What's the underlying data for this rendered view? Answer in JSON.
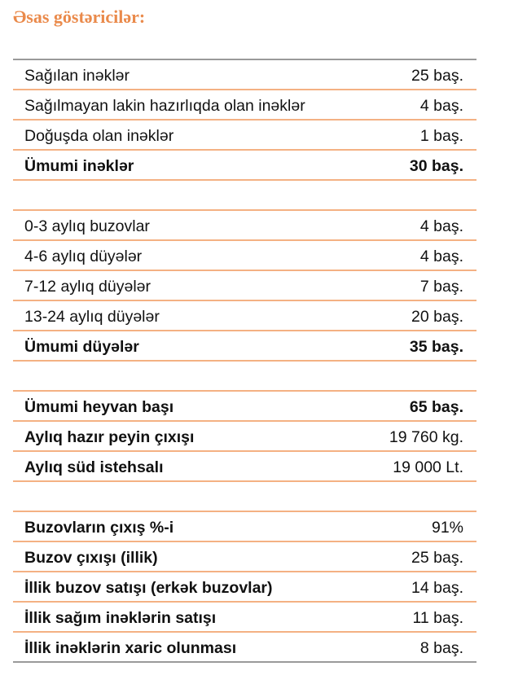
{
  "title": "Əsas göstəricilər:",
  "rows": [
    {
      "label": "Sağılan inəklər",
      "value": "25 baş.",
      "bold": false
    },
    {
      "label": "Sağılmayan lakin hazırlıqda olan inəklər",
      "value": "4 baş.",
      "bold": false
    },
    {
      "label": "Doğuşda olan inəklər",
      "value": "1 baş.",
      "bold": false
    },
    {
      "label": "Ümumi inəklər",
      "value": "30 baş.",
      "bold": true
    },
    {
      "label": "",
      "value": "",
      "bold": false
    },
    {
      "label": "0-3 aylıq buzovlar",
      "value": "4 baş.",
      "bold": false
    },
    {
      "label": "4-6 aylıq düyələr",
      "value": "4 baş.",
      "bold": false
    },
    {
      "label": "7-12 aylıq düyələr",
      "value": "7 baş.",
      "bold": false
    },
    {
      "label": "13-24 aylıq düyələr",
      "value": "20 baş.",
      "bold": false
    },
    {
      "label": "Ümumi düyələr",
      "value": "35 baş.",
      "bold": true
    },
    {
      "label": "",
      "value": "",
      "bold": false
    },
    {
      "label": "Ümumi heyvan başı",
      "value": "65 baş.",
      "bold": true
    },
    {
      "label": "Aylıq hazır peyin çıxışı",
      "value": "19 760 kg.",
      "bold": "label"
    },
    {
      "label": "Aylıq süd istehsalı",
      "value": "19 000 Lt.",
      "bold": "label"
    },
    {
      "label": "",
      "value": "",
      "bold": false
    },
    {
      "label": "Buzovların çıxış %-i",
      "value": "91%",
      "bold": "label"
    },
    {
      "label": "Buzov çıxışı (illik)",
      "value": "25 baş.",
      "bold": "label"
    },
    {
      "label": "İllik buzov satışı (erkək buzovlar)",
      "value": "14 baş.",
      "bold": "label"
    },
    {
      "label": "İllik sağım inəklərin satışı",
      "value": "11 baş.",
      "bold": "label"
    },
    {
      "label": "İllik inəklərin xaric olunması",
      "value": "8 baş.",
      "bold": "label"
    }
  ],
  "colors": {
    "title": "#EA8A4B",
    "rule": "#F4B183",
    "outer_rule": "#9A9A9A"
  }
}
